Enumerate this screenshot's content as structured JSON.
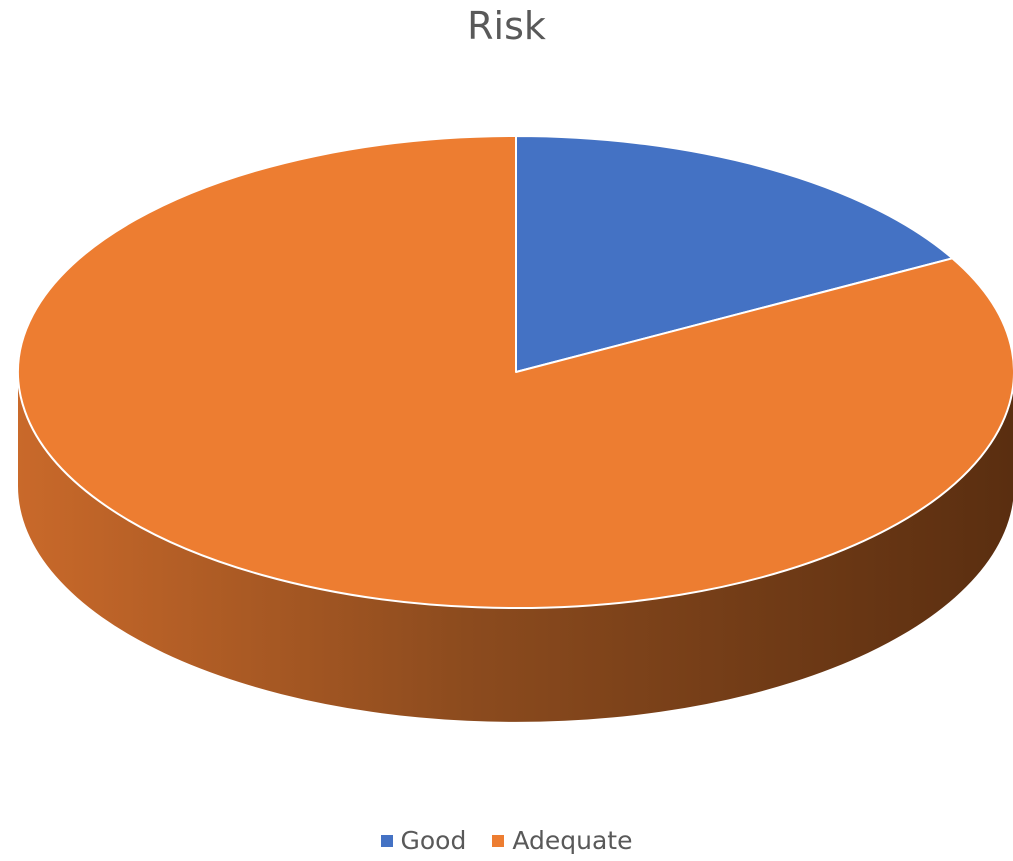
{
  "chart_data": {
    "type": "pie",
    "title": "Risk",
    "categories": [
      "Good",
      "Adequate"
    ],
    "values": [
      17,
      83
    ],
    "colors": [
      "#4472C4",
      "#ED7D31"
    ],
    "style": "3d",
    "legend_position": "bottom"
  }
}
